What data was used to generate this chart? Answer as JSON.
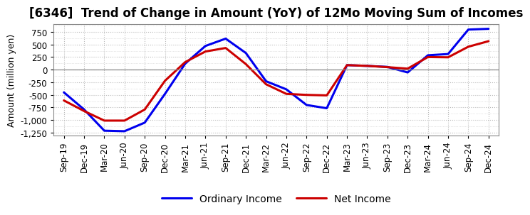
{
  "title": "[6346]  Trend of Change in Amount (YoY) of 12Mo Moving Sum of Incomes",
  "ylabel": "Amount (million yen)",
  "background_color": "#ffffff",
  "plot_bg_color": "#ffffff",
  "x_labels": [
    "Sep-19",
    "Dec-19",
    "Mar-20",
    "Jun-20",
    "Sep-20",
    "Dec-20",
    "Mar-21",
    "Jun-21",
    "Sep-21",
    "Dec-21",
    "Mar-22",
    "Jun-22",
    "Sep-22",
    "Dec-22",
    "Mar-23",
    "Jun-23",
    "Sep-23",
    "Dec-23",
    "Mar-24",
    "Jun-24",
    "Sep-24",
    "Dec-24"
  ],
  "ordinary_income": [
    -450,
    -790,
    -1210,
    -1220,
    -1050,
    -480,
    120,
    470,
    615,
    330,
    -230,
    -390,
    -700,
    -765,
    90,
    75,
    55,
    -55,
    285,
    310,
    795,
    810
  ],
  "net_income": [
    -610,
    -820,
    -1010,
    -1010,
    -790,
    -220,
    150,
    360,
    430,
    110,
    -290,
    -480,
    -500,
    -510,
    90,
    75,
    50,
    20,
    250,
    245,
    455,
    565
  ],
  "ylim": [
    -1300,
    900
  ],
  "yticks": [
    -1250,
    -1000,
    -750,
    -500,
    -250,
    0,
    250,
    500,
    750
  ],
  "ordinary_color": "#0000ee",
  "net_color": "#cc0000",
  "line_width": 2.2,
  "title_fontsize": 12,
  "legend_fontsize": 10,
  "tick_fontsize": 8.5,
  "ylabel_fontsize": 9
}
